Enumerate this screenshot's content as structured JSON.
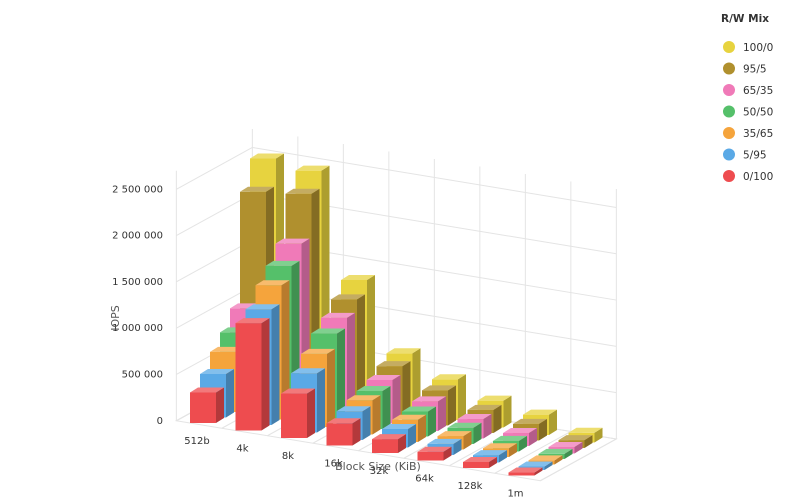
{
  "chart_data": {
    "type": "bar",
    "subtype": "3d-clustered-bar",
    "xlabel": "Block Size (KiB)",
    "ylabel": "IOPS",
    "categories": [
      "512b",
      "4k",
      "8k",
      "16k",
      "32k",
      "64k",
      "128k",
      "1m"
    ],
    "yticks": [
      "0",
      "500 000",
      "1 000 000",
      "1 500 000",
      "2 000 000",
      "2 500 000"
    ],
    "ylim": [
      0,
      2700000
    ],
    "grid": true,
    "legend": {
      "title": "R/W Mix",
      "placement": "top-right"
    },
    "series": [
      {
        "name": "100/0",
        "color": "#e7d33f",
        "values": [
          2500000,
          2450000,
          1350000,
          640000,
          440000,
          290000,
          220000,
          105000
        ]
      },
      {
        "name": "95/5",
        "color": "#b0902e",
        "values": [
          2200000,
          2260000,
          1200000,
          560000,
          380000,
          250000,
          180000,
          85000
        ]
      },
      {
        "name": "65/35",
        "color": "#f07ab8",
        "values": [
          1000000,
          1780000,
          1060000,
          470000,
          320000,
          210000,
          140000,
          70000
        ]
      },
      {
        "name": "50/50",
        "color": "#55c06a",
        "values": [
          800000,
          1600000,
          950000,
          410000,
          270000,
          175000,
          115000,
          55000
        ]
      },
      {
        "name": "35/65",
        "color": "#f5a43c",
        "values": [
          650000,
          1450000,
          790000,
          370000,
          240000,
          145000,
          95000,
          45000
        ]
      },
      {
        "name": "5/95",
        "color": "#5aa9e6",
        "values": [
          470000,
          1250000,
          640000,
          310000,
          200000,
          120000,
          80000,
          38000
        ]
      },
      {
        "name": "0/100",
        "color": "#ee4c4f",
        "values": [
          330000,
          1160000,
          480000,
          240000,
          150000,
          95000,
          65000,
          32000
        ]
      }
    ]
  }
}
